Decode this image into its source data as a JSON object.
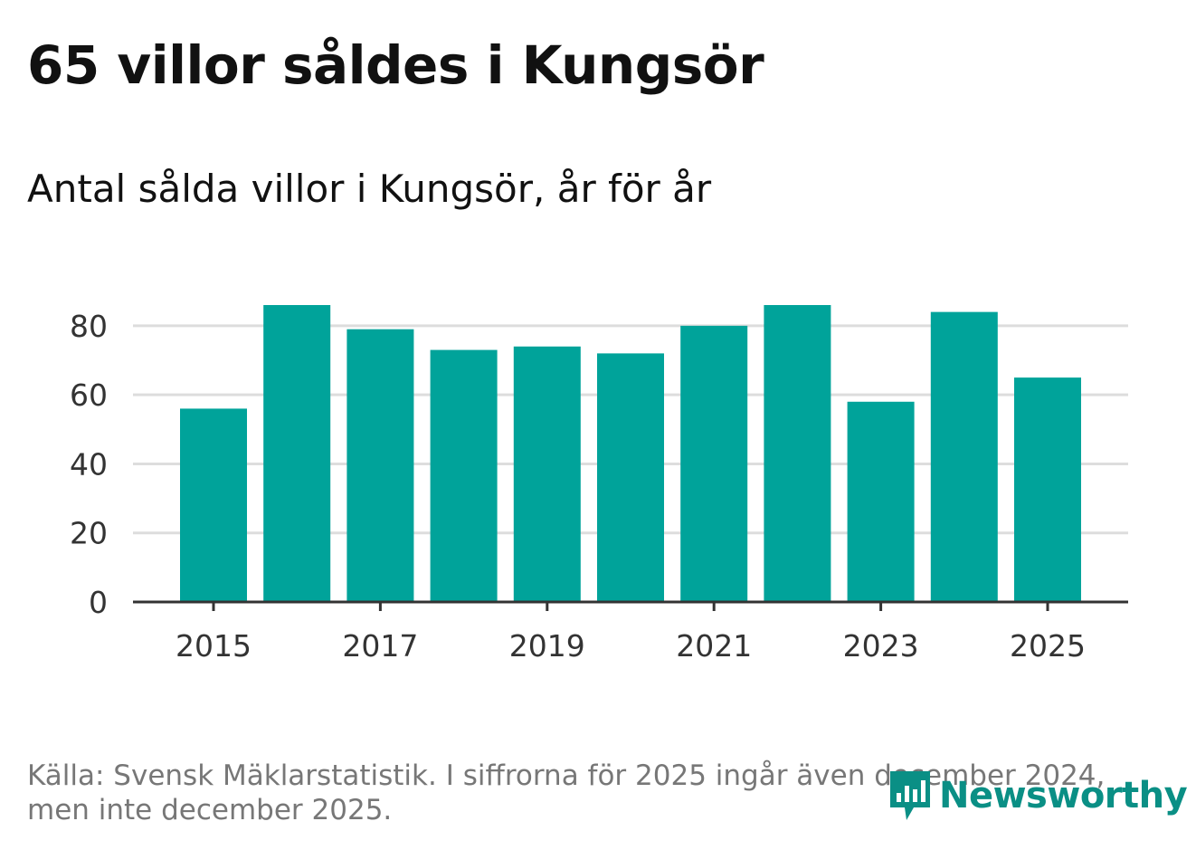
{
  "title": "65 villor såldes i Kungsör",
  "subtitle": "Antal sålda villor i Kungsör, år för år",
  "source": "Källa: Svensk Mäklarstatistik. I siffrorna för 2025 ingår även december 2024, men inte december 2025.",
  "logo": {
    "text": "Newsworthy",
    "icon": "newsworthy-bars-icon"
  },
  "colors": {
    "bar": "#00a39a",
    "grid": "#dddddd",
    "axis": "#333333",
    "logo": "#0a8f85"
  },
  "chart_data": {
    "type": "bar",
    "title": "Antal sålda villor i Kungsör, år för år",
    "xlabel": "",
    "ylabel": "",
    "categories": [
      "2015",
      "2016",
      "2017",
      "2018",
      "2019",
      "2020",
      "2021",
      "2022",
      "2023",
      "2024",
      "2025"
    ],
    "values": [
      56,
      86,
      79,
      73,
      74,
      72,
      80,
      86,
      58,
      84,
      65
    ],
    "x_tick_labels": [
      "2015",
      "2017",
      "2019",
      "2021",
      "2023",
      "2025"
    ],
    "y_ticks": [
      0,
      20,
      40,
      60,
      80
    ],
    "ylim": [
      0,
      86
    ],
    "grid": true,
    "legend": "none"
  }
}
